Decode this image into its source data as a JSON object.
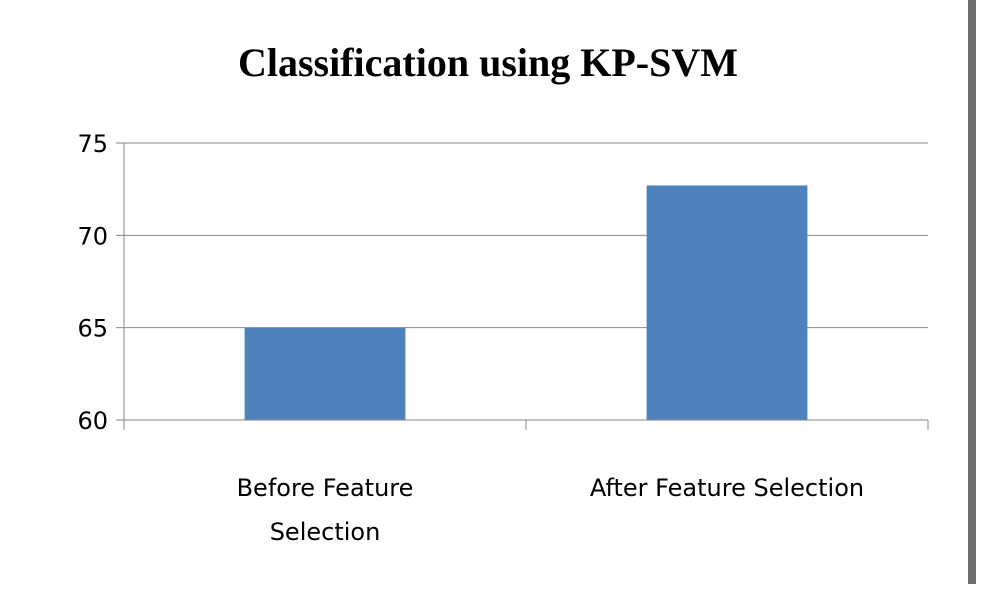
{
  "chart_data": {
    "type": "bar",
    "title": "Classification using KP-SVM",
    "categories": [
      [
        "Before Feature",
        "Selection"
      ],
      [
        "After  Feature Selection"
      ]
    ],
    "series": [
      {
        "values": [
          65,
          72.7
        ]
      }
    ],
    "ylim": [
      60,
      75
    ],
    "yticks": [
      "75",
      "70",
      "65",
      "60"
    ],
    "grid": true,
    "legend": "none",
    "colors": {
      "bar": "#4f81bd",
      "grid": "#868686"
    }
  }
}
